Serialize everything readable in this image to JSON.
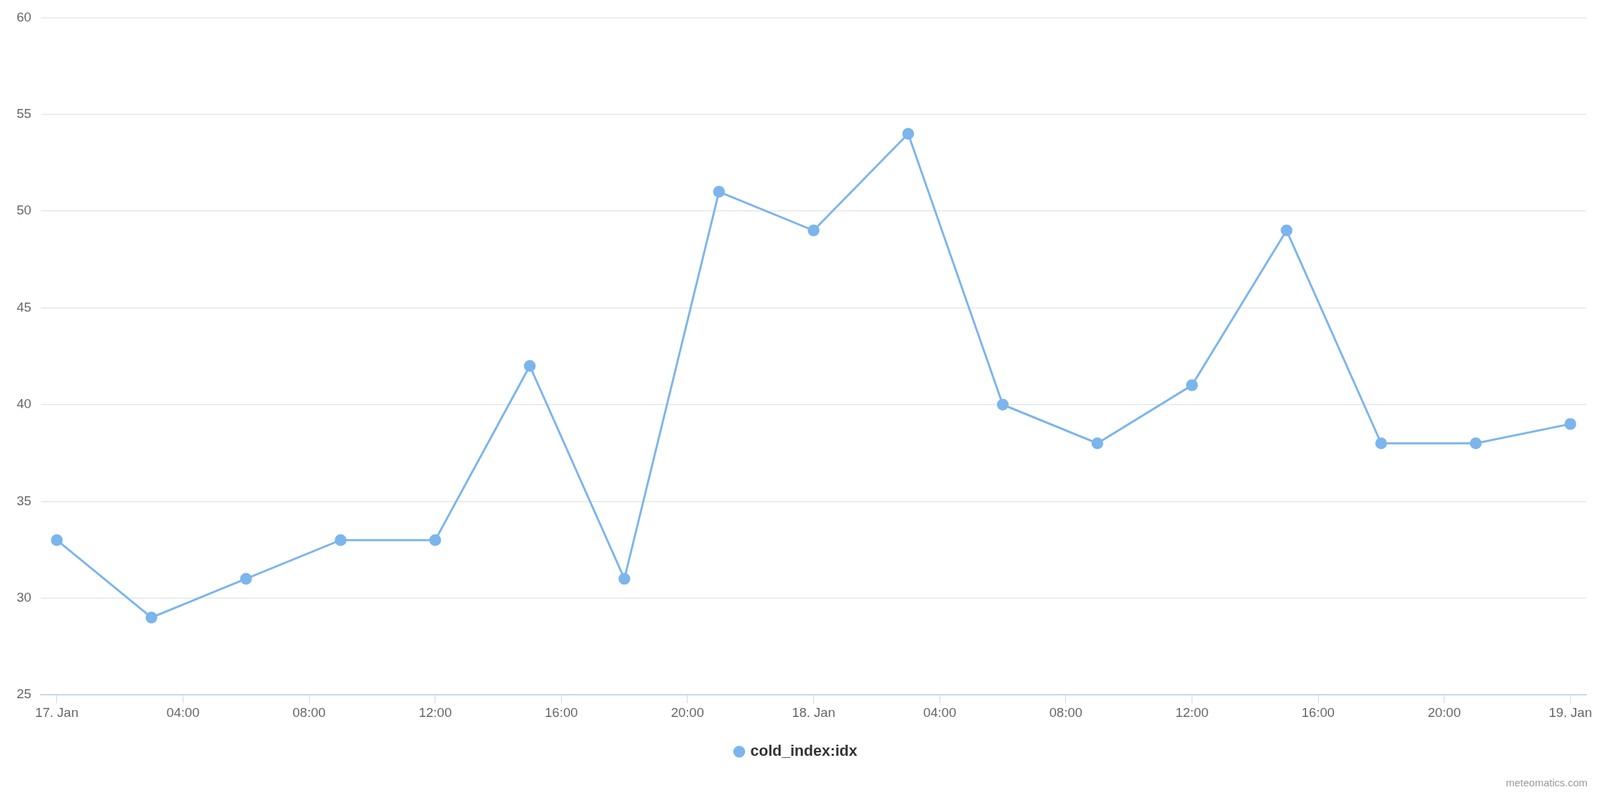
{
  "chart_data": {
    "type": "line",
    "x": [
      0,
      3,
      6,
      9,
      12,
      15,
      18,
      21,
      24,
      27,
      30,
      33,
      36,
      39,
      42,
      45,
      48
    ],
    "series": [
      {
        "name": "cold_index:idx",
        "color": "#7cb5ec",
        "marker": "circle",
        "line_style": "solid",
        "values": [
          33,
          29,
          31,
          33,
          33,
          42,
          31,
          51,
          49,
          54,
          40,
          38,
          41,
          49,
          38,
          38,
          39
        ]
      }
    ],
    "xlim": [
      -0.5,
      48.5
    ],
    "xticks": [
      {
        "value": 0,
        "label": "17. Jan"
      },
      {
        "value": 4,
        "label": "04:00"
      },
      {
        "value": 8,
        "label": "08:00"
      },
      {
        "value": 12,
        "label": "12:00"
      },
      {
        "value": 16,
        "label": "16:00"
      },
      {
        "value": 20,
        "label": "20:00"
      },
      {
        "value": 24,
        "label": "18. Jan"
      },
      {
        "value": 28,
        "label": "04:00"
      },
      {
        "value": 32,
        "label": "08:00"
      },
      {
        "value": 36,
        "label": "12:00"
      },
      {
        "value": 40,
        "label": "16:00"
      },
      {
        "value": 44,
        "label": "20:00"
      },
      {
        "value": 48,
        "label": "19. Jan"
      }
    ],
    "ylim": [
      25,
      60
    ],
    "yticks": [
      25,
      30,
      35,
      40,
      45,
      50,
      55,
      60
    ],
    "grid": true,
    "legend": "bottom",
    "credit": "meteomatics.com"
  }
}
